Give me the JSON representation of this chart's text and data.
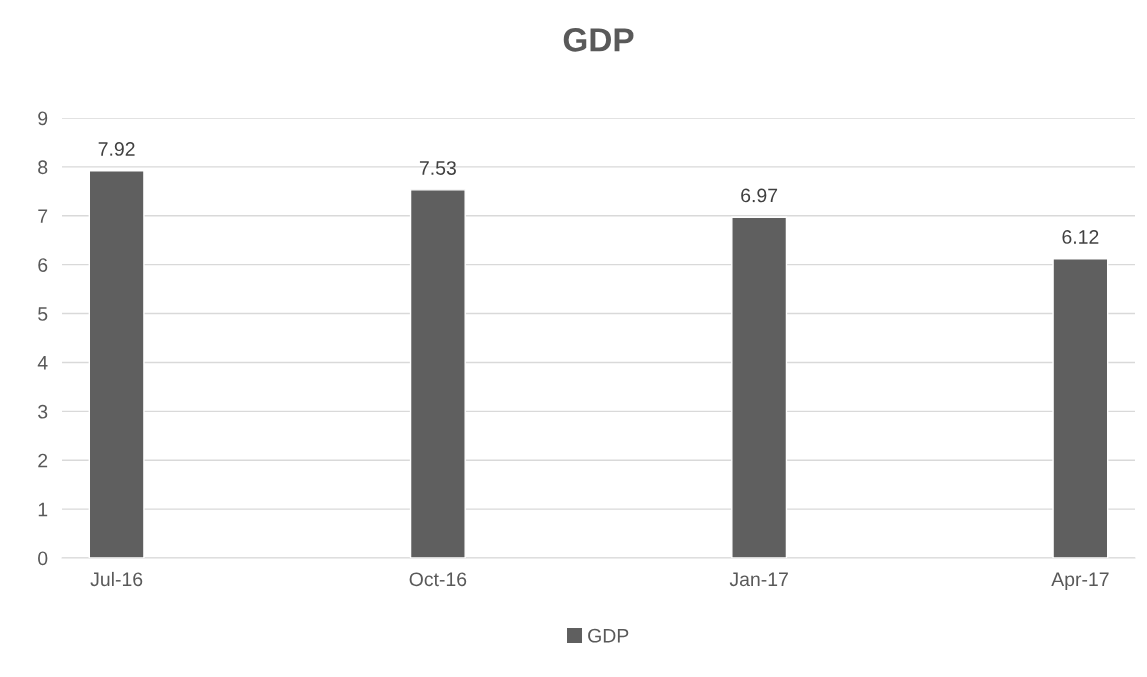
{
  "chart_data": {
    "type": "bar",
    "title": "GDP",
    "categories": [
      "Jul-16",
      "Oct-16",
      "Jan-17",
      "Apr-17"
    ],
    "series": [
      {
        "name": "GDP",
        "color": "#5f5f5f",
        "values": [
          7.92,
          7.53,
          6.97,
          6.12
        ]
      }
    ],
    "ylim": [
      0,
      9
    ],
    "yticks": [
      0,
      1,
      2,
      3,
      4,
      5,
      6,
      7,
      8,
      9
    ],
    "grid": "y",
    "legend": "bottom",
    "data_labels": true
  }
}
